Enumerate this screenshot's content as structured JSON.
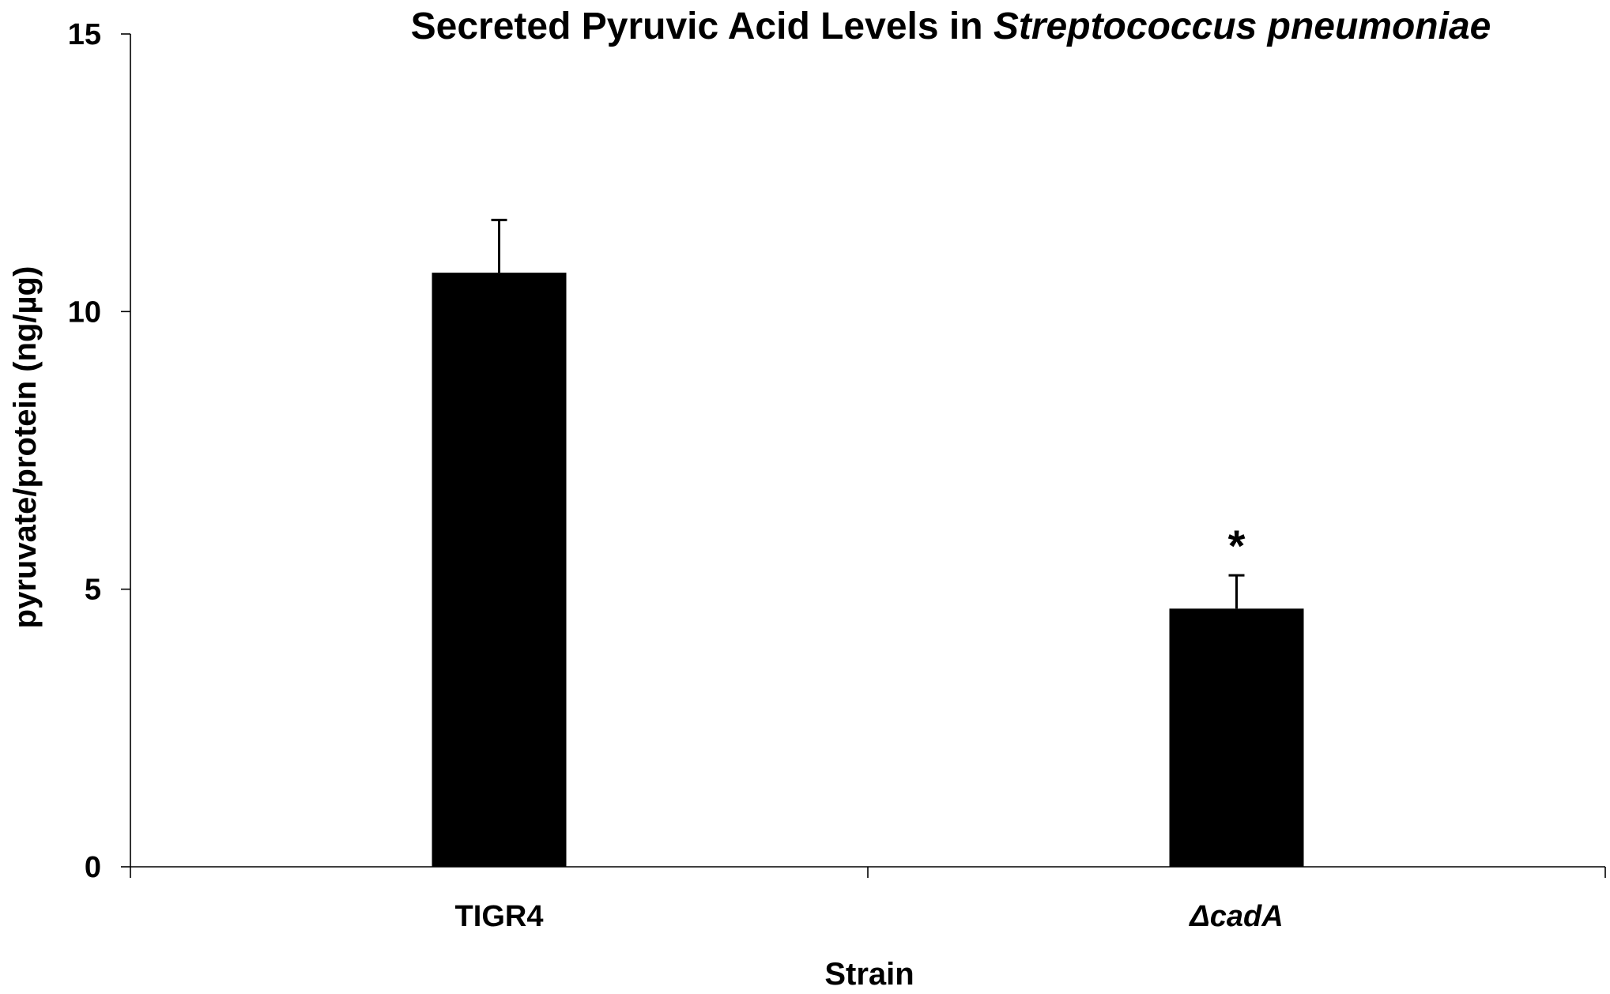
{
  "chart_data": {
    "type": "bar",
    "title": {
      "prefix": "Secreted Pyruvic Acid Levels in ",
      "italic": "Streptococcus pneumoniae"
    },
    "xlabel": "Strain",
    "ylabel": "pyruvate/protein (ng/µg)",
    "categories": [
      "TIGR4",
      "ΔcadA"
    ],
    "category_italic": [
      false,
      true
    ],
    "values": [
      10.7,
      4.65
    ],
    "error_upper": [
      0.95,
      0.6
    ],
    "annotations": [
      "",
      "*"
    ],
    "ylim": [
      0,
      15
    ],
    "yticks": [
      "0",
      "5",
      "10",
      "15"
    ],
    "bar_color": "#000000",
    "grid": false,
    "legend": "none"
  }
}
